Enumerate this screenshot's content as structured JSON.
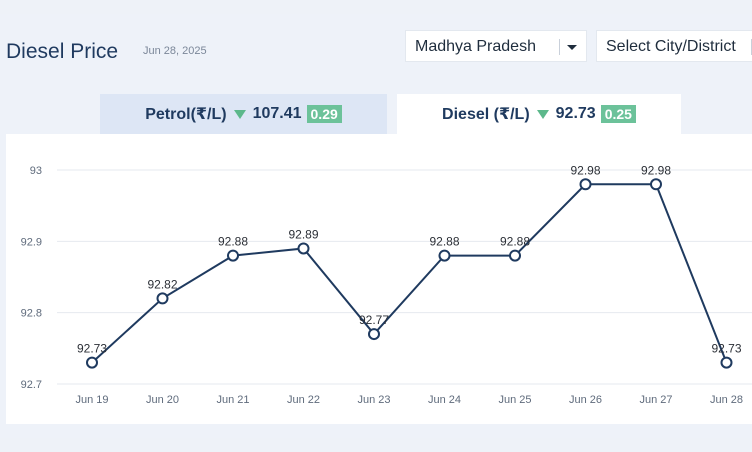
{
  "header": {
    "title": "Diesel Price",
    "date": "Jun 28, 2025",
    "state_select": "Madhya Pradesh",
    "city_select": "Select City/District"
  },
  "tabs": {
    "petrol": {
      "label": "Petrol(₹/L)",
      "price": "107.41",
      "change": "0.29"
    },
    "diesel": {
      "label": "Diesel (₹/L)",
      "price": "92.73",
      "change": "0.25"
    }
  },
  "colors": {
    "line": "#1f3a5f",
    "badge": "#6cc29a",
    "down_arrow": "#5cb88b"
  },
  "chart_data": {
    "type": "line",
    "categories": [
      "Jun 19",
      "Jun 20",
      "Jun 21",
      "Jun 22",
      "Jun 23",
      "Jun 24",
      "Jun 25",
      "Jun 26",
      "Jun 27",
      "Jun 28"
    ],
    "values": [
      92.73,
      92.82,
      92.88,
      92.89,
      92.77,
      92.88,
      92.88,
      92.98,
      92.98,
      92.73
    ],
    "data_labels": [
      "92.73",
      "92.82",
      "92.88",
      "92.89",
      "92.77",
      "92.88",
      "92.88",
      "92.98",
      "92.98",
      "92.73"
    ],
    "y_ticks": [
      "92.7",
      "92.8",
      "92.9",
      "93"
    ],
    "y_tick_values": [
      92.7,
      92.8,
      92.9,
      93
    ],
    "ylim": [
      92.7,
      93.0
    ],
    "grid": true
  }
}
